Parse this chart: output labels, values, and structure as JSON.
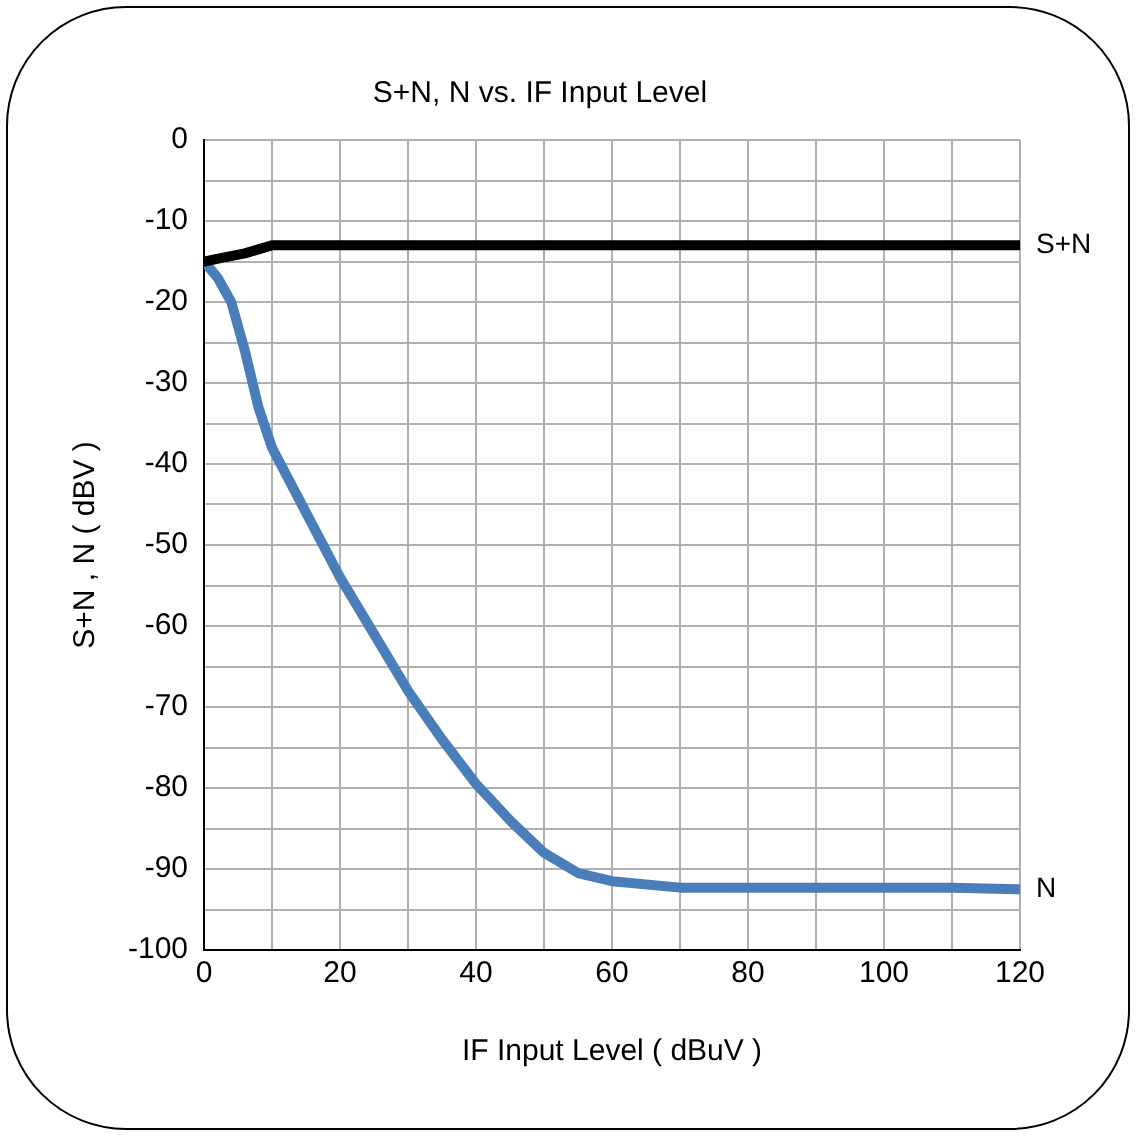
{
  "chart_data": {
    "type": "line",
    "title": "S+N, N vs. IF Input Level",
    "xlabel": "IF Input Level ( dBuV )",
    "ylabel": "S+N , N ( dBV )",
    "xlim": [
      0,
      120
    ],
    "ylim": [
      -100,
      0
    ],
    "xticks": [
      0,
      {
        "value": 10,
        "label": null
      },
      20,
      {
        "value": 30,
        "label": null
      },
      40,
      {
        "value": 50,
        "label": null
      },
      60,
      {
        "value": 70,
        "label": null
      },
      80,
      {
        "value": 90,
        "label": null
      },
      100,
      {
        "value": 110,
        "label": null
      },
      120
    ],
    "yticks": [
      -100,
      {
        "value": -95,
        "label": null
      },
      -90,
      {
        "value": -85,
        "label": null
      },
      -80,
      {
        "value": -75,
        "label": null
      },
      -70,
      {
        "value": -65,
        "label": null
      },
      -60,
      {
        "value": -55,
        "label": null
      },
      -50,
      {
        "value": -45,
        "label": null
      },
      -40,
      {
        "value": -35,
        "label": null
      },
      -30,
      {
        "value": -25,
        "label": null
      },
      -20,
      {
        "value": -15,
        "label": null
      },
      -10,
      {
        "value": -5,
        "label": null
      },
      0
    ],
    "grid": true,
    "legend": false,
    "marker": "none",
    "line_style": "solid",
    "series": [
      {
        "name": "S+N",
        "color": "#000000",
        "x": [
          0,
          3,
          6,
          8,
          10,
          12,
          120
        ],
        "values": [
          -15,
          -14.5,
          -14,
          -13.5,
          -13,
          -13,
          -13
        ]
      },
      {
        "name": "N",
        "color": "#4a7ebb",
        "x": [
          0,
          2,
          4,
          6,
          8,
          10,
          15,
          20,
          25,
          30,
          35,
          40,
          45,
          50,
          55,
          60,
          70,
          80,
          90,
          100,
          110,
          120
        ],
        "values": [
          -15,
          -17,
          -20,
          -26,
          -33,
          -38,
          -46,
          -54,
          -61,
          -68,
          -74,
          -79.5,
          -84,
          -88,
          -90.5,
          -91.5,
          -92.3,
          -92.3,
          -92.3,
          -92.3,
          -92.3,
          -92.5
        ]
      }
    ]
  }
}
